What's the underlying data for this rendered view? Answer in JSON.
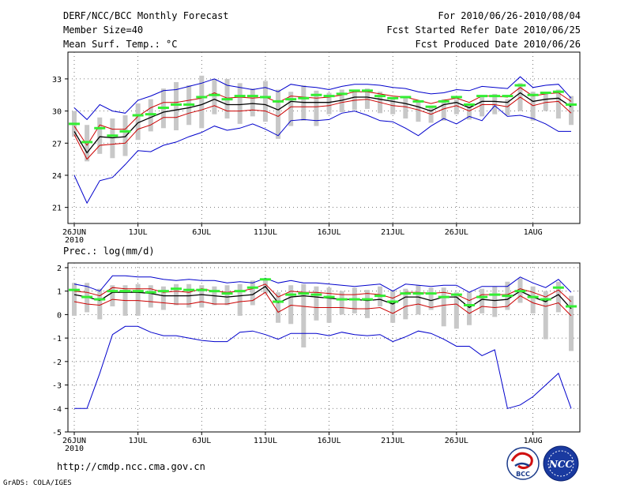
{
  "header": {
    "title": "DERF/NCC/BCC Monthly Forecast",
    "member_size": "Member Size=40",
    "variable": "Mean Surf. Temp.: °C",
    "forecast_period": "For 2010/06/26-2010/08/04",
    "start_date": "Fcst Started Refer Date 2010/06/25",
    "produced_date": "Fcst Produced Date 2010/06/26"
  },
  "footer": {
    "url": "http://cmdp.ncc.cma.gov.cn",
    "grads_credit": "GrADS: COLA/IGES",
    "logo_bcc": "BCC",
    "logo_ncc": "NCC"
  },
  "colors": {
    "min_max": "#0000cc",
    "spread": "#cc0000",
    "mean": "#000000",
    "bars": "#c8c8c8",
    "markers": "#33ee33",
    "grid": "#555555"
  },
  "chart_data": [
    {
      "type": "line",
      "title": "Mean Surf. Temp.: °C",
      "x_tick_labels": [
        "26JUN",
        "1JUL",
        "6JUL",
        "11JUL",
        "16JUL",
        "21JUL",
        "26JUL",
        "1AUG"
      ],
      "x_tick_days": [
        0,
        5,
        10,
        15,
        20,
        25,
        30,
        36
      ],
      "year_label": "2010",
      "ylim": [
        19.5,
        35.5
      ],
      "yticks": [
        21,
        24,
        27,
        30,
        33
      ],
      "days": [
        0,
        1,
        2,
        3,
        4,
        5,
        6,
        7,
        8,
        9,
        10,
        11,
        12,
        13,
        14,
        15,
        16,
        17,
        18,
        19,
        20,
        21,
        22,
        23,
        24,
        25,
        26,
        27,
        28,
        29,
        30,
        31,
        32,
        33,
        34,
        35,
        36,
        37,
        38,
        39
      ],
      "series": [
        {
          "name": "max",
          "values": [
            30.3,
            29.2,
            30.6,
            30.0,
            29.8,
            31.0,
            31.4,
            31.9,
            32.0,
            32.3,
            32.6,
            33.0,
            32.4,
            32.2,
            32.0,
            32.2,
            31.8,
            32.5,
            32.3,
            32.2,
            32.0,
            32.3,
            32.5,
            32.5,
            32.4,
            32.2,
            32.1,
            31.8,
            31.6,
            31.7,
            32.0,
            31.9,
            32.3,
            32.2,
            32.1,
            33.2,
            32.2,
            32.4,
            32.5,
            31.2
          ]
        },
        {
          "name": "spread_upper",
          "values": [
            28.6,
            26.8,
            28.7,
            28.3,
            28.3,
            29.5,
            30.3,
            30.8,
            30.8,
            31.0,
            31.2,
            31.7,
            31.2,
            31.3,
            31.2,
            31.3,
            30.8,
            31.4,
            31.3,
            31.2,
            31.3,
            31.5,
            31.8,
            31.8,
            31.6,
            31.4,
            31.3,
            31.0,
            30.7,
            31.0,
            31.2,
            30.8,
            31.4,
            31.4,
            31.3,
            32.2,
            31.4,
            31.6,
            31.7,
            30.9
          ]
        },
        {
          "name": "mean",
          "values": [
            28.1,
            26.1,
            27.6,
            27.5,
            27.6,
            28.9,
            29.4,
            29.9,
            30.1,
            30.3,
            30.6,
            31.1,
            30.6,
            30.6,
            30.7,
            30.6,
            30.1,
            30.9,
            30.8,
            30.8,
            30.8,
            31.0,
            31.3,
            31.3,
            31.1,
            30.9,
            30.7,
            30.4,
            30.0,
            30.6,
            30.8,
            30.3,
            30.9,
            30.9,
            30.8,
            31.7,
            30.9,
            31.1,
            31.2,
            30.4
          ]
        },
        {
          "name": "spread_lower",
          "values": [
            27.8,
            25.5,
            26.8,
            26.9,
            27.0,
            28.3,
            28.7,
            29.4,
            29.4,
            29.8,
            30.1,
            30.5,
            30.0,
            30.0,
            30.1,
            30.0,
            29.5,
            30.4,
            30.4,
            30.4,
            30.5,
            30.8,
            31.0,
            31.1,
            30.8,
            30.5,
            30.4,
            30.1,
            29.7,
            30.2,
            30.5,
            30.0,
            30.6,
            30.6,
            30.4,
            31.3,
            30.5,
            30.8,
            30.9,
            29.8
          ]
        },
        {
          "name": "min",
          "values": [
            24.0,
            21.4,
            23.5,
            23.8,
            25.0,
            26.3,
            26.2,
            26.8,
            27.1,
            27.6,
            28.0,
            28.6,
            28.2,
            28.4,
            28.8,
            28.3,
            27.7,
            29.1,
            29.2,
            29.1,
            29.2,
            29.8,
            30.0,
            29.6,
            29.1,
            29.0,
            28.4,
            27.7,
            28.6,
            29.3,
            28.8,
            29.5,
            29.1,
            30.5,
            29.5,
            29.6,
            29.3,
            28.8,
            28.1,
            28.1
          ]
        }
      ],
      "bars": {
        "low": [
          27.6,
          25.3,
          26.0,
          25.6,
          25.8,
          27.3,
          28.1,
          28.4,
          28.2,
          28.7,
          28.4,
          29.7,
          29.3,
          28.8,
          29.5,
          29.0,
          27.4,
          28.6,
          29.1,
          28.6,
          29.7,
          29.9,
          30.1,
          30.2,
          29.8,
          29.7,
          29.3,
          29.0,
          28.9,
          29.1,
          29.7,
          29.2,
          29.5,
          29.7,
          29.6,
          30.0,
          29.1,
          30.0,
          29.3,
          28.7
        ],
        "high": [
          30.0,
          28.7,
          29.4,
          29.3,
          29.6,
          30.7,
          31.1,
          32.1,
          32.7,
          32.4,
          33.3,
          33.0,
          33.0,
          32.6,
          32.1,
          32.8,
          32.0,
          31.8,
          32.4,
          31.9,
          31.7,
          32.0,
          31.8,
          32.1,
          31.8,
          31.3,
          31.3,
          30.9,
          30.5,
          31.1,
          31.1,
          30.7,
          31.4,
          31.6,
          31.1,
          32.6,
          31.8,
          31.7,
          32.0,
          31.4
        ]
      },
      "markers": [
        28.8,
        27.1,
        28.4,
        27.7,
        28.1,
        29.6,
        29.7,
        30.3,
        30.6,
        30.6,
        31.3,
        31.5,
        31.1,
        31.4,
        31.4,
        31.3,
        30.9,
        31.1,
        31.2,
        31.5,
        31.4,
        31.6,
        31.9,
        31.9,
        31.4,
        31.2,
        31.3,
        30.9,
        30.4,
        30.9,
        31.3,
        30.6,
        31.4,
        31.4,
        31.4,
        32.4,
        31.5,
        31.7,
        31.8,
        30.6
      ]
    },
    {
      "type": "line",
      "title": "Prec.: log(mm/d)",
      "x_tick_labels": [
        "26JUN",
        "1JUL",
        "6JUL",
        "11JUL",
        "16JUL",
        "21JUL",
        "26JUL",
        "1AUG"
      ],
      "x_tick_days": [
        0,
        5,
        10,
        15,
        20,
        25,
        30,
        36
      ],
      "year_label": "2010",
      "ylim": [
        -5,
        2.2
      ],
      "yticks": [
        -5,
        -4,
        -3,
        -2,
        -1,
        0,
        1,
        2
      ],
      "days": [
        0,
        1,
        2,
        3,
        4,
        5,
        6,
        7,
        8,
        9,
        10,
        11,
        12,
        13,
        14,
        15,
        16,
        17,
        18,
        19,
        20,
        21,
        22,
        23,
        24,
        25,
        26,
        27,
        28,
        29,
        30,
        31,
        32,
        33,
        34,
        35,
        36,
        37,
        38,
        39
      ],
      "series": [
        {
          "name": "max",
          "values": [
            1.3,
            1.2,
            1.0,
            1.65,
            1.65,
            1.6,
            1.6,
            1.5,
            1.45,
            1.5,
            1.45,
            1.45,
            1.35,
            1.4,
            1.35,
            1.55,
            1.35,
            1.45,
            1.35,
            1.35,
            1.3,
            1.25,
            1.2,
            1.25,
            1.3,
            1.0,
            1.3,
            1.25,
            1.2,
            1.25,
            1.25,
            0.95,
            1.2,
            1.2,
            1.2,
            1.6,
            1.35,
            1.15,
            1.5,
            0.95
          ]
        },
        {
          "name": "spread_upper",
          "values": [
            1.0,
            0.95,
            0.8,
            1.15,
            1.1,
            1.1,
            1.1,
            0.95,
            1.0,
            0.95,
            1.1,
            1.0,
            0.95,
            1.0,
            1.1,
            1.3,
            0.75,
            1.0,
            0.95,
            0.95,
            0.9,
            0.85,
            0.85,
            0.9,
            0.85,
            0.7,
            0.95,
            0.95,
            0.9,
            0.95,
            0.85,
            0.6,
            0.85,
            0.85,
            0.85,
            1.1,
            0.95,
            0.75,
            1.05,
            0.55
          ]
        },
        {
          "name": "mean",
          "values": [
            0.85,
            0.75,
            0.6,
            0.95,
            0.95,
            0.95,
            0.9,
            0.8,
            0.8,
            0.8,
            0.85,
            0.8,
            0.75,
            0.8,
            0.85,
            1.2,
            0.5,
            0.75,
            0.8,
            0.75,
            0.7,
            0.65,
            0.65,
            0.6,
            0.65,
            0.45,
            0.75,
            0.75,
            0.6,
            0.75,
            0.75,
            0.3,
            0.65,
            0.6,
            0.65,
            1.0,
            0.75,
            0.55,
            0.85,
            0.25
          ]
        },
        {
          "name": "spread_lower",
          "values": [
            0.55,
            0.45,
            0.4,
            0.65,
            0.6,
            0.6,
            0.55,
            0.5,
            0.45,
            0.45,
            0.55,
            0.45,
            0.45,
            0.55,
            0.6,
            0.95,
            0.1,
            0.4,
            0.35,
            0.3,
            0.3,
            0.3,
            0.25,
            0.25,
            0.3,
            0.05,
            0.35,
            0.45,
            0.3,
            0.4,
            0.45,
            0.05,
            0.35,
            0.3,
            0.35,
            0.8,
            0.5,
            0.35,
            0.5,
            -0.05
          ]
        },
        {
          "name": "min",
          "values": [
            -4.0,
            -4.0,
            -2.5,
            -0.85,
            -0.5,
            -0.5,
            -0.75,
            -0.9,
            -0.9,
            -1.0,
            -1.1,
            -1.15,
            -1.15,
            -0.75,
            -0.7,
            -0.85,
            -1.05,
            -0.8,
            -0.8,
            -0.8,
            -0.9,
            -0.75,
            -0.85,
            -0.9,
            -0.85,
            -1.15,
            -0.95,
            -0.7,
            -0.8,
            -1.05,
            -1.35,
            -1.35,
            -1.75,
            -1.5,
            -4.0,
            -3.85,
            -3.5,
            -3.0,
            -2.5,
            -4.0
          ]
        }
      ],
      "bars": {
        "low": [
          -0.05,
          0.1,
          -0.2,
          0.35,
          -0.05,
          -0.05,
          0.3,
          0.2,
          0.4,
          0.3,
          0.3,
          0.4,
          0.4,
          -0.05,
          0.4,
          0.9,
          -0.35,
          -0.4,
          -1.4,
          -0.25,
          -0.35,
          0.0,
          0.05,
          -0.15,
          0.35,
          -0.35,
          -0.2,
          0.0,
          0.2,
          -0.5,
          -0.6,
          -0.45,
          0.05,
          -0.1,
          0.2,
          0.5,
          0.05,
          -1.05,
          0.1,
          -1.55
        ],
        "high": [
          1.35,
          1.35,
          1.1,
          1.25,
          1.25,
          1.3,
          1.25,
          1.2,
          1.3,
          1.3,
          1.25,
          1.2,
          1.25,
          1.3,
          1.45,
          1.5,
          0.95,
          1.25,
          1.3,
          1.2,
          1.15,
          1.0,
          1.15,
          1.05,
          1.2,
          1.05,
          1.1,
          1.25,
          1.15,
          1.15,
          0.95,
          0.95,
          1.1,
          1.2,
          1.4,
          1.55,
          1.2,
          1.0,
          1.4,
          0.8
        ]
      },
      "markers": [
        1.05,
        0.75,
        0.65,
        1.0,
        1.0,
        1.0,
        0.95,
        1.0,
        1.1,
        1.05,
        1.05,
        1.0,
        0.9,
        1.0,
        1.15,
        1.5,
        0.55,
        0.85,
        0.9,
        0.85,
        0.75,
        0.65,
        0.65,
        0.65,
        0.8,
        0.55,
        0.9,
        0.9,
        0.9,
        0.75,
        0.85,
        0.4,
        0.75,
        0.85,
        0.8,
        1.0,
        0.75,
        0.65,
        1.15,
        0.35
      ]
    }
  ]
}
